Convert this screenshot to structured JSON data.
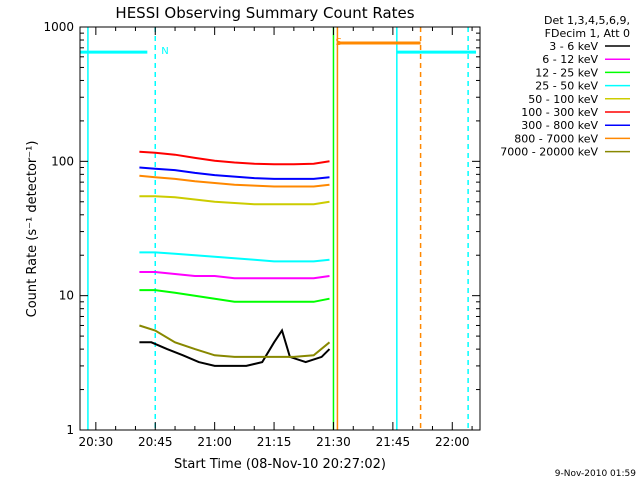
{
  "chart_data": {
    "type": "line",
    "title": "HESSI Observing Summary Count Rates",
    "xlabel": "Start Time (08-Nov-10 20:27:02)",
    "ylabel": "Count Rate (s⁻¹ detector⁻¹)",
    "yscale": "log",
    "ylim": [
      1,
      1000
    ],
    "xlim": [
      "20:26",
      "22:07"
    ],
    "x_ticks": [
      "20:30",
      "20:45",
      "21:00",
      "21:15",
      "21:30",
      "21:45",
      "22:00"
    ],
    "y_ticks": [
      "1",
      "10",
      "100",
      "1000"
    ],
    "legend_header": [
      "Det 1,3,4,5,6,9,",
      "FDecim 1, Att 0"
    ],
    "legend_position": "right",
    "series": [
      {
        "name": "3 - 6 keV",
        "color": "#000000",
        "x": [
          "20:41",
          "20:44",
          "20:48",
          "20:52",
          "20:56",
          "21:00",
          "21:04",
          "21:08",
          "21:12",
          "21:15",
          "21:17",
          "21:19",
          "21:23",
          "21:27",
          "21:29"
        ],
        "y": [
          4.5,
          4.5,
          4.0,
          3.6,
          3.2,
          3.0,
          3.0,
          3.0,
          3.2,
          4.5,
          5.5,
          3.5,
          3.2,
          3.5,
          4.0
        ]
      },
      {
        "name": "6 - 12 keV",
        "color": "#ff00ff",
        "x": [
          "20:41",
          "20:45",
          "20:50",
          "20:55",
          "21:00",
          "21:05",
          "21:10",
          "21:15",
          "21:20",
          "21:25",
          "21:29"
        ],
        "y": [
          15,
          15,
          14.5,
          14,
          14,
          13.5,
          13.5,
          13.5,
          13.5,
          13.5,
          14
        ]
      },
      {
        "name": "12 - 25 keV",
        "color": "#00ff00",
        "x": [
          "20:41",
          "20:45",
          "20:50",
          "20:55",
          "21:00",
          "21:05",
          "21:10",
          "21:15",
          "21:20",
          "21:25",
          "21:29"
        ],
        "y": [
          11,
          11,
          10.5,
          10,
          9.5,
          9,
          9,
          9,
          9,
          9,
          9.5
        ]
      },
      {
        "name": "25 - 50 keV",
        "color": "#00ffff",
        "x": [
          "20:41",
          "20:45",
          "20:50",
          "20:55",
          "21:00",
          "21:05",
          "21:10",
          "21:15",
          "21:20",
          "21:25",
          "21:29"
        ],
        "y": [
          21,
          21,
          20.5,
          20,
          19.5,
          19,
          18.5,
          18,
          18,
          18,
          18.5
        ]
      },
      {
        "name": "50 - 100 keV",
        "color": "#cccc00",
        "x": [
          "20:41",
          "20:45",
          "20:50",
          "20:55",
          "21:00",
          "21:05",
          "21:10",
          "21:15",
          "21:20",
          "21:25",
          "21:29"
        ],
        "y": [
          55,
          55,
          54,
          52,
          50,
          49,
          48,
          48,
          48,
          48,
          50
        ]
      },
      {
        "name": "100 - 300 keV",
        "color": "#ff0000",
        "x": [
          "20:41",
          "20:45",
          "20:50",
          "20:55",
          "21:00",
          "21:05",
          "21:10",
          "21:15",
          "21:20",
          "21:25",
          "21:29"
        ],
        "y": [
          118,
          116,
          112,
          106,
          101,
          98,
          96,
          95,
          95,
          96,
          100
        ]
      },
      {
        "name": "300 - 800 keV",
        "color": "#0000ff",
        "x": [
          "20:41",
          "20:45",
          "20:50",
          "20:55",
          "21:00",
          "21:05",
          "21:10",
          "21:15",
          "21:20",
          "21:25",
          "21:29"
        ],
        "y": [
          90,
          88,
          86,
          82,
          79,
          77,
          75,
          74,
          74,
          74,
          76
        ]
      },
      {
        "name": "800 - 7000 keV",
        "color": "#ff8800",
        "x": [
          "20:41",
          "20:45",
          "20:50",
          "20:55",
          "21:00",
          "21:05",
          "21:10",
          "21:15",
          "21:20",
          "21:25",
          "21:29"
        ],
        "y": [
          78,
          76,
          74,
          71,
          69,
          67,
          66,
          65,
          65,
          65,
          67
        ]
      },
      {
        "name": "7000 - 20000 keV",
        "color": "#888800",
        "x": [
          "20:41",
          "20:45",
          "20:50",
          "20:55",
          "21:00",
          "21:05",
          "21:10",
          "21:15",
          "21:20",
          "21:25",
          "21:29"
        ],
        "y": [
          6.0,
          5.5,
          4.5,
          4.0,
          3.6,
          3.5,
          3.5,
          3.5,
          3.5,
          3.6,
          4.5
        ]
      }
    ],
    "flag_bars": [
      {
        "label": "N",
        "color": "#00ffff",
        "x1": "20:26",
        "x2": "20:43",
        "y": 650,
        "label_at": "20:45"
      },
      {
        "label": "",
        "color": "#00ffff",
        "x1": "21:46",
        "x2": "22:06",
        "y": 650,
        "label_at": ""
      },
      {
        "label": "S",
        "color": "#ff8800",
        "x1": "21:31",
        "x2": "21:52",
        "y": 760,
        "label_at": "21:29"
      }
    ],
    "vlines": [
      {
        "x": "20:28",
        "color": "#00ffff",
        "style": "solid"
      },
      {
        "x": "20:45",
        "color": "#00ffff",
        "style": "dashed"
      },
      {
        "x": "21:31",
        "color": "#ff8800",
        "style": "solid"
      },
      {
        "x": "21:30",
        "color": "#00ff00",
        "style": "solid"
      },
      {
        "x": "21:46",
        "color": "#00ffff",
        "style": "solid"
      },
      {
        "x": "21:52",
        "color": "#ff8800",
        "style": "dashed"
      },
      {
        "x": "22:04",
        "color": "#00ffff",
        "style": "dashed"
      }
    ],
    "footer_timestamp": "9-Nov-2010 01:59"
  }
}
